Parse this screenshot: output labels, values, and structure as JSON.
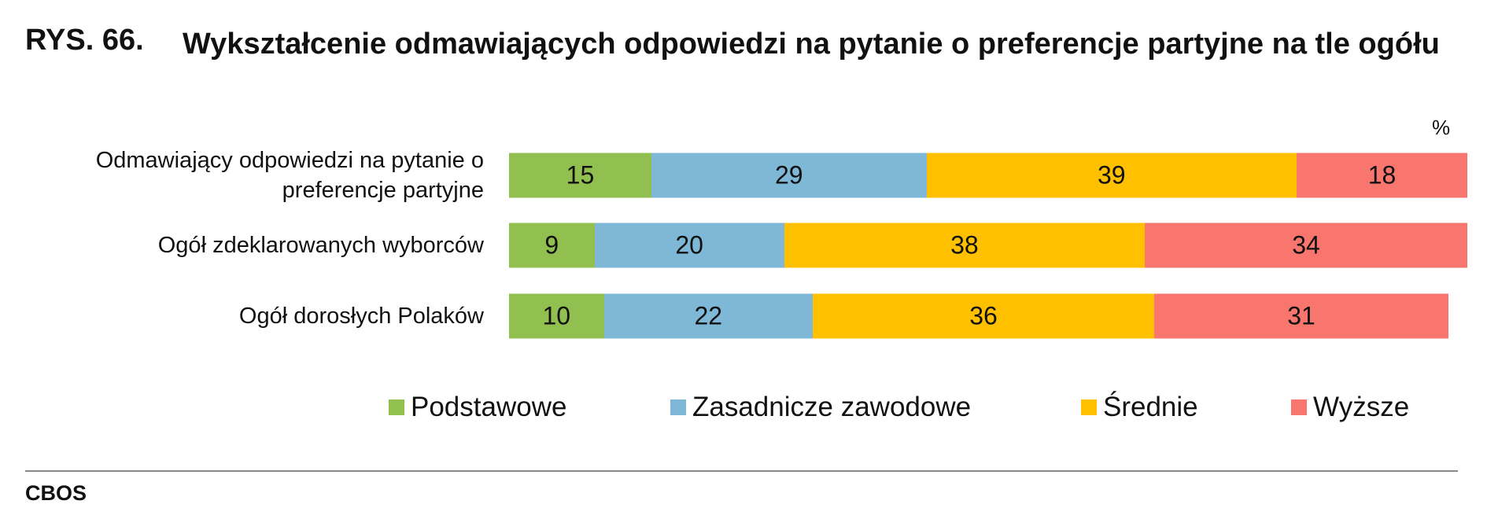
{
  "chart_data": {
    "type": "bar",
    "orientation": "horizontal",
    "stacked": true,
    "figure_label": "RYS. 66.",
    "title": "Wykształcenie odmawiających odpowiedzi na pytanie o preferencje partyjne na tle ogółu",
    "unit_label": "%",
    "categories": [
      "Odmawiający odpowiedzi na pytanie o preferencje partyjne",
      "Ogół zdeklarowanych wyborców",
      "Ogół dorosłych Polaków"
    ],
    "series": [
      {
        "name": "Podstawowe",
        "color": "#92c050",
        "values": [
          15,
          9,
          10
        ]
      },
      {
        "name": "Zasadnicze zawodowe",
        "color": "#7fb8d6",
        "values": [
          29,
          20,
          22
        ]
      },
      {
        "name": "Średnie",
        "color": "#ffc000",
        "values": [
          39,
          38,
          36
        ]
      },
      {
        "name": "Wyższe",
        "color": "#f8766d",
        "values": [
          18,
          34,
          31
        ]
      }
    ],
    "xlim": [
      0,
      100
    ],
    "source": "CBOS"
  }
}
